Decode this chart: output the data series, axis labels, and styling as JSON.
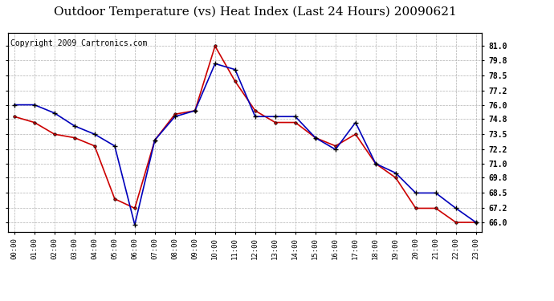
{
  "title": "Outdoor Temperature (vs) Heat Index (Last 24 Hours) 20090621",
  "copyright": "Copyright 2009 Cartronics.com",
  "x_labels": [
    "00:00",
    "01:00",
    "02:00",
    "03:00",
    "04:00",
    "05:00",
    "06:00",
    "07:00",
    "08:00",
    "09:00",
    "10:00",
    "11:00",
    "12:00",
    "13:00",
    "14:00",
    "15:00",
    "16:00",
    "17:00",
    "18:00",
    "19:00",
    "20:00",
    "21:00",
    "22:00",
    "23:00"
  ],
  "blue_temp": [
    76.0,
    76.0,
    75.3,
    74.2,
    73.5,
    72.5,
    65.8,
    73.0,
    75.0,
    75.5,
    79.5,
    79.0,
    75.0,
    75.0,
    75.0,
    73.2,
    72.2,
    74.5,
    71.0,
    70.2,
    68.5,
    68.5,
    67.2,
    66.0
  ],
  "red_heat": [
    75.0,
    74.5,
    73.5,
    73.2,
    72.5,
    68.0,
    67.2,
    73.0,
    75.2,
    75.5,
    81.0,
    78.0,
    75.5,
    74.5,
    74.5,
    73.2,
    72.5,
    73.5,
    71.0,
    69.8,
    67.2,
    67.2,
    66.0,
    66.0
  ],
  "ylim": [
    65.2,
    82.1
  ],
  "yticks": [
    66.0,
    67.2,
    68.5,
    69.8,
    71.0,
    72.2,
    73.5,
    74.8,
    76.0,
    77.2,
    78.5,
    79.8,
    81.0
  ],
  "blue_color": "#0000bb",
  "red_color": "#cc0000",
  "grid_color": "#b0b0b0",
  "bg_color": "#ffffff",
  "title_fontsize": 11,
  "copy_fontsize": 7
}
